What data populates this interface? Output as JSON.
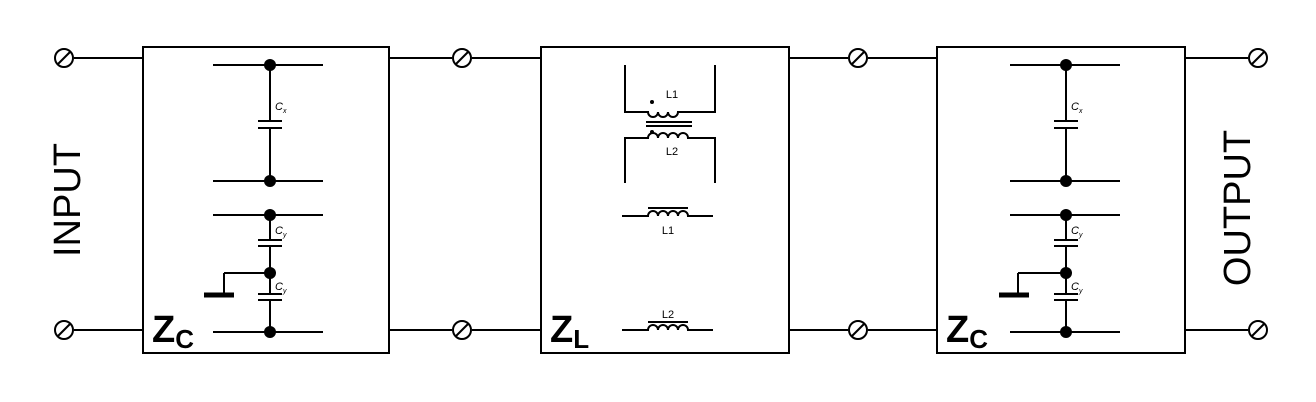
{
  "labels": {
    "input": "INPUT",
    "output": "OUTPUT"
  },
  "blocks": {
    "zc_left": {
      "main": "Z",
      "sub": "C"
    },
    "zl": {
      "main": "Z",
      "sub": "L"
    },
    "zc_right": {
      "main": "Z",
      "sub": "C"
    }
  },
  "components": {
    "cx": "C",
    "cx_sub": "x",
    "cy": "C",
    "cy_sub": "y",
    "l1": "L1",
    "l2": "L2"
  }
}
